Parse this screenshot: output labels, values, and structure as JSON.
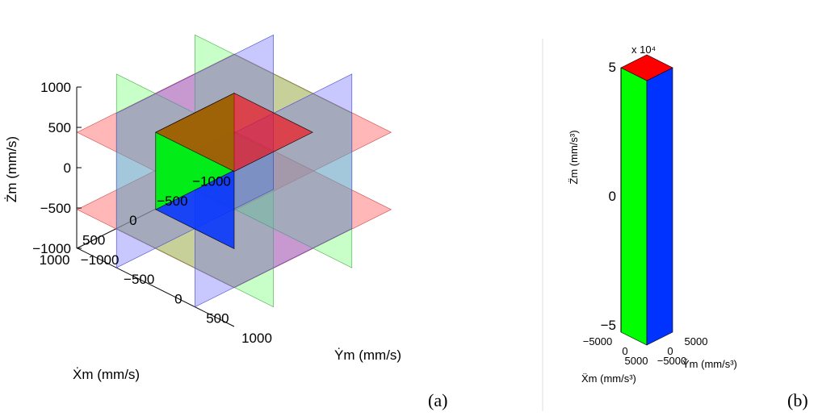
{
  "panels": [
    {
      "label": "(a)",
      "chart_data": {
        "type": "3d-surface",
        "x_label": "Ẋm (mm/s)",
        "y_label": "Ẏm (mm/s)",
        "z_label": "Żm (mm/s)",
        "x_ticks": [
          "−1000",
          "−500",
          "0",
          "500",
          "1000"
        ],
        "y_ticks": [
          "−1000",
          "−500",
          "0",
          "500",
          "1000"
        ],
        "z_ticks": [
          "1000",
          "500",
          "0",
          "−500",
          "−1000"
        ],
        "xlim": [
          -1000,
          1000
        ],
        "ylim": [
          -1000,
          1000
        ],
        "zlim": [
          -1000,
          1000
        ],
        "box": {
          "x": [
            -500,
            500
          ],
          "y": [
            -500,
            500
          ],
          "z": [
            -500,
            500
          ]
        },
        "planes": [
          {
            "axis": "z",
            "values": [
              500,
              -500
            ],
            "color": "#ff6060"
          },
          {
            "axis": "x",
            "values": [
              500,
              -500
            ],
            "color": "#60ff60"
          },
          {
            "axis": "y",
            "values": [
              500,
              -500
            ],
            "color": "#6060ff"
          }
        ]
      }
    },
    {
      "label": "(b)",
      "chart_data": {
        "type": "3d-surface",
        "x_label": "Ẍm (mm/s³)",
        "y_label": "Ÿm (mm/s³)",
        "z_label": "Z̈m (mm/s³)",
        "z_exponent": "x 10⁴",
        "x_ticks": [
          "−5000",
          "0",
          "5000"
        ],
        "y_ticks": [
          "−5000",
          "0",
          "5000"
        ],
        "z_ticks": [
          "5",
          "0",
          "−5"
        ],
        "xlim": [
          -5000,
          5000
        ],
        "ylim": [
          -5000,
          5000
        ],
        "zlim": [
          -50000,
          50000
        ],
        "box": {
          "x": [
            -5000,
            5000
          ],
          "y": [
            -5000,
            5000
          ],
          "z": [
            -50000,
            50000
          ]
        }
      }
    }
  ],
  "colors": {
    "green": "#00ff00",
    "blue": "#0033ff",
    "red": "#ff0000",
    "plane_red": "#ff6060",
    "plane_green": "#60ff60",
    "plane_blue": "#6060ff"
  }
}
